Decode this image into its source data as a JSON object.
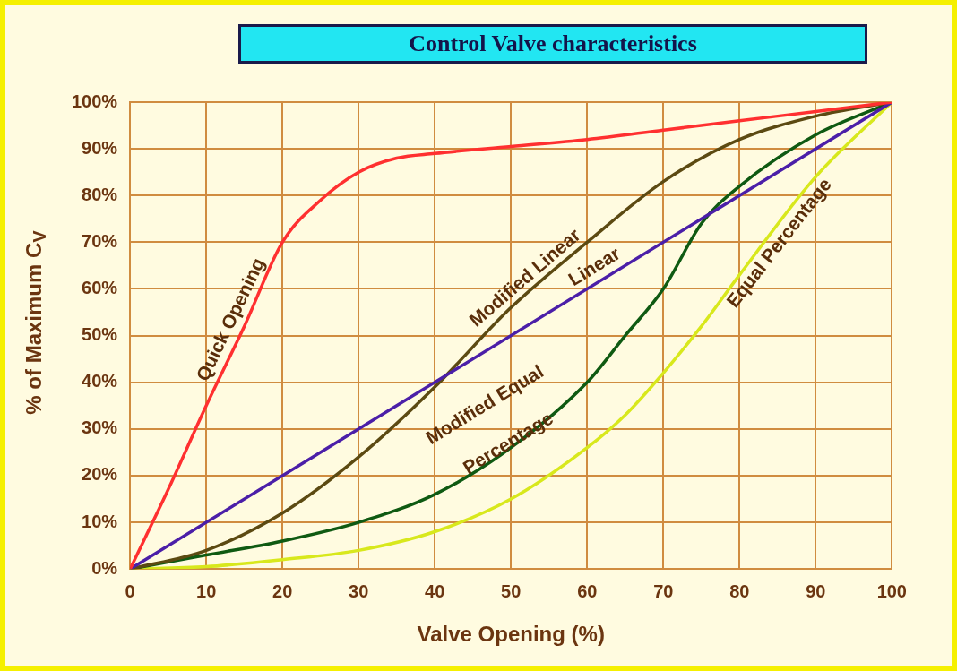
{
  "chart_data": {
    "type": "line",
    "title": "Control Valve characteristics",
    "xlabel": "Valve Opening (%)",
    "ylabel": "% of Maximum C$_{V}$",
    "xlim": [
      0,
      100
    ],
    "xticks": [
      0,
      10,
      20,
      30,
      40,
      50,
      60,
      70,
      80,
      90,
      100
    ],
    "ylim": [
      0,
      100
    ],
    "yticks": [
      {
        "value": 0,
        "label": "0%"
      },
      {
        "value": 10,
        "label": "10%"
      },
      {
        "value": 20,
        "label": "20%"
      },
      {
        "value": 30,
        "label": "30%"
      },
      {
        "value": 40,
        "label": "40%"
      },
      {
        "value": 50,
        "label": "50%"
      },
      {
        "value": 60,
        "label": "60%"
      },
      {
        "value": 70,
        "label": "70%"
      },
      {
        "value": 80,
        "label": "80%"
      },
      {
        "value": 90,
        "label": "90%"
      },
      {
        "value": 100,
        "label": "100%"
      }
    ],
    "grid": true,
    "legend": false,
    "marker": "none",
    "line_style": "solid",
    "series": [
      {
        "name": "Quick Opening",
        "color": "#ff3030",
        "x": [
          0,
          5,
          10,
          15,
          20,
          25,
          30,
          35,
          40,
          50,
          60,
          70,
          80,
          90,
          100
        ],
        "values": [
          0,
          17,
          35,
          52,
          70,
          79,
          85,
          88,
          89,
          90.5,
          92,
          94,
          96,
          98,
          100
        ]
      },
      {
        "name": "Linear",
        "color": "#4b1fa8",
        "x": [
          0,
          100
        ],
        "values": [
          0,
          100
        ]
      },
      {
        "name": "Modified Linear",
        "color": "#5c4a12",
        "x": [
          0,
          10,
          20,
          30,
          40,
          50,
          60,
          70,
          80,
          90,
          100
        ],
        "values": [
          0,
          4,
          12,
          24,
          39,
          56,
          70,
          83,
          92,
          97,
          100
        ]
      },
      {
        "name": "Modified Equal Percentage",
        "color": "#0f5a12",
        "x": [
          0,
          10,
          20,
          30,
          40,
          50,
          60,
          65,
          70,
          75,
          80,
          90,
          100
        ],
        "values": [
          0,
          3,
          6,
          10,
          16,
          26,
          40,
          50,
          60,
          74,
          82,
          93,
          100
        ]
      },
      {
        "name": "Equal Percentage",
        "color": "#d8e81c",
        "x": [
          0,
          10,
          20,
          30,
          40,
          50,
          60,
          65,
          70,
          75,
          80,
          90,
          100
        ],
        "values": [
          0,
          0.5,
          2,
          4,
          8,
          15,
          26,
          33,
          42,
          52,
          63,
          84,
          100
        ]
      }
    ]
  }
}
